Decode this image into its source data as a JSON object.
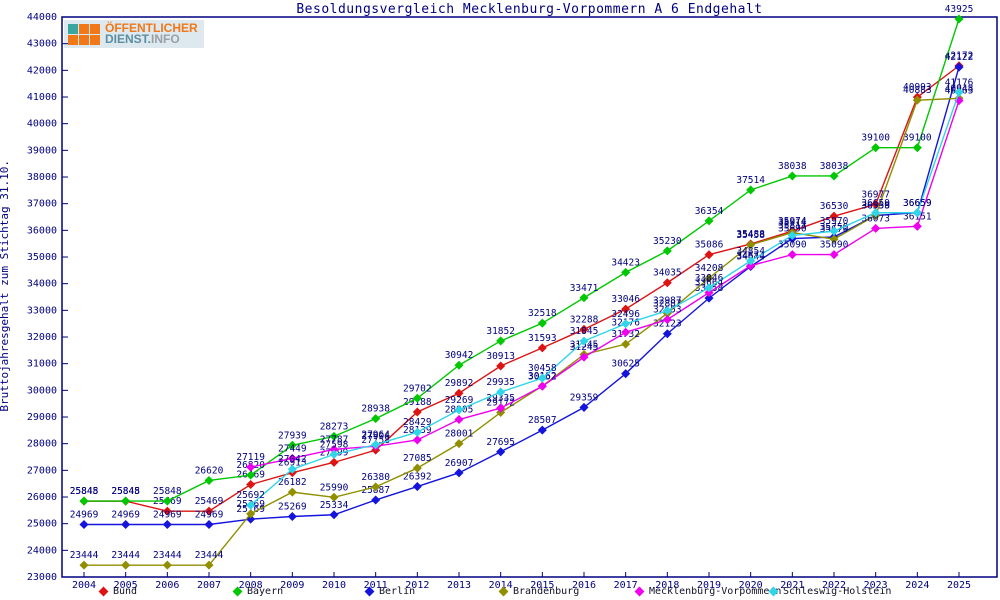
{
  "title": "Besoldungsvergleich Mecklenburg-Vorpommern A 6 Endgehalt",
  "y_axis_label": "Bruttojahresgehalt zum Stichtag 31.10.",
  "logo": {
    "line1": "ÖFFENTLICHER",
    "line2_teal": "DIENST.",
    "line2_gray": "INFO"
  },
  "colors": {
    "axis_text": "#000080",
    "frame": "#000080",
    "point_label": "#000080"
  },
  "chart_data": {
    "type": "line",
    "x": [
      2004,
      2005,
      2006,
      2007,
      2008,
      2009,
      2010,
      2011,
      2012,
      2013,
      2014,
      2015,
      2016,
      2017,
      2018,
      2019,
      2020,
      2021,
      2022,
      2023,
      2024,
      2025
    ],
    "ylim": [
      23000,
      44000
    ],
    "ytick_step": 1000,
    "grid": false,
    "legend_position": "bottom",
    "point_labels": true,
    "series": [
      {
        "name": "Bund",
        "color": "#dc1414",
        "values": [
          25845,
          25845,
          25469,
          25469,
          26469,
          26913,
          27299,
          27758,
          29188,
          29892,
          30913,
          31593,
          32288,
          33046,
          34035,
          35086,
          35488,
          35974,
          36530,
          36977,
          40993,
          42172
        ]
      },
      {
        "name": "Bayern",
        "color": "#00c800",
        "values": [
          25848,
          25848,
          25848,
          26620,
          26820,
          27939,
          28273,
          28938,
          29702,
          30942,
          31852,
          32518,
          33471,
          34423,
          35230,
          36354,
          37514,
          38038,
          38038,
          39100,
          39100,
          43925
        ]
      },
      {
        "name": "Berlin",
        "color": "#1414dd",
        "values": [
          24969,
          24969,
          24969,
          24969,
          25169,
          25269,
          25334,
          25887,
          26392,
          26907,
          27695,
          28507,
          29359,
          30625,
          32123,
          33458,
          34644,
          35690,
          35750,
          36558,
          36659,
          42122
        ]
      },
      {
        "name": "Brandenburg",
        "color": "#8f8f00",
        "values": [
          23444,
          23444,
          23444,
          23444,
          25369,
          26182,
          25990,
          26380,
          27085,
          28001,
          29172,
          30162,
          31345,
          31732,
          32887,
          34208,
          35458,
          35914,
          35670,
          36559,
          40883,
          40948
        ]
      },
      {
        "name": "Mecklenburg-Vorpommern",
        "color": "#ee00ee",
        "values": [
          null,
          null,
          null,
          null,
          27119,
          27449,
          27787,
          27904,
          28139,
          28905,
          29335,
          30152,
          31245,
          32176,
          32653,
          33664,
          34674,
          35090,
          35090,
          36073,
          36151,
          40863
        ]
      },
      {
        "name": "Schleswig-Holstein",
        "color": "#30d5e8",
        "values": [
          null,
          null,
          null,
          null,
          25692,
          27042,
          27598,
          27964,
          28429,
          29269,
          29935,
          30458,
          31845,
          32496,
          32987,
          33846,
          34854,
          35811,
          35970,
          36659,
          36659,
          41176
        ]
      }
    ]
  }
}
